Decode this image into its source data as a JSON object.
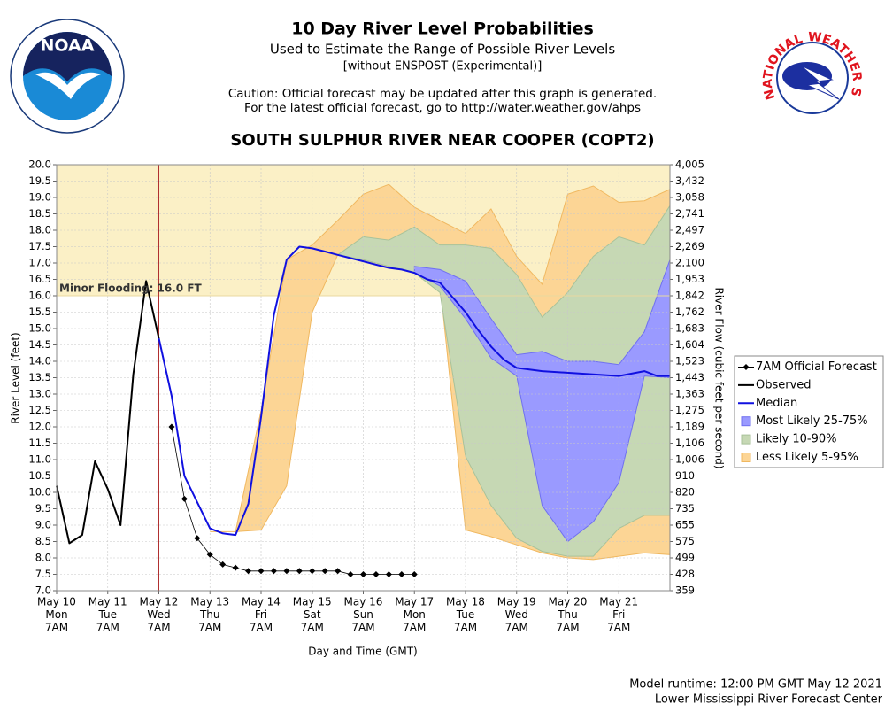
{
  "chart_data": {
    "type": "river-probability",
    "logos": {
      "noaa": "NOAA",
      "nws": "NATIONAL WEATHER SERVICE"
    },
    "title": "10 Day River Level Probabilities",
    "subtitles": [
      "Used to Estimate the Range of Possible River Levels",
      "[without ENSPOST (Experimental)]"
    ],
    "caution": [
      "Caution: Official forecast may be updated after this graph is generated.",
      "For the latest official forecast, go to http://water.weather.gov/ahps"
    ],
    "plot_title": "SOUTH SULPHUR RIVER NEAR COOPER (COPT2)",
    "xlabel": "Day and Time (GMT)",
    "ylabel": "River Level (feet)",
    "y2label": "River Flow (cubic feet per second)",
    "footer": [
      "Model runtime: 12:00 PM GMT May 12 2021",
      "Lower Mississippi River Forecast Center"
    ],
    "xlim": [
      "May 10 07:00",
      "May 22 07:00"
    ],
    "xticks": [
      {
        "value": "May 10 07:00",
        "label": [
          "May 10",
          "Mon",
          "7AM"
        ]
      },
      {
        "value": "May 11 07:00",
        "label": [
          "May 11",
          "Tue",
          "7AM"
        ]
      },
      {
        "value": "May 12 07:00",
        "label": [
          "May 12",
          "Wed",
          "7AM"
        ]
      },
      {
        "value": "May 13 07:00",
        "label": [
          "May 13",
          "Thu",
          "7AM"
        ]
      },
      {
        "value": "May 14 07:00",
        "label": [
          "May 14",
          "Fri",
          "7AM"
        ]
      },
      {
        "value": "May 15 07:00",
        "label": [
          "May 15",
          "Sat",
          "7AM"
        ]
      },
      {
        "value": "May 16 07:00",
        "label": [
          "May 16",
          "Sun",
          "7AM"
        ]
      },
      {
        "value": "May 17 07:00",
        "label": [
          "May 17",
          "Mon",
          "7AM"
        ]
      },
      {
        "value": "May 18 07:00",
        "label": [
          "May 18",
          "Tue",
          "7AM"
        ]
      },
      {
        "value": "May 19 07:00",
        "label": [
          "May 19",
          "Wed",
          "7AM"
        ]
      },
      {
        "value": "May 20 07:00",
        "label": [
          "May 20",
          "Thu",
          "7AM"
        ]
      },
      {
        "value": "May 21 07:00",
        "label": [
          "May 21",
          "Fri",
          "7AM"
        ]
      }
    ],
    "ylim": [
      7,
      20
    ],
    "yticks": [
      {
        "value": 20,
        "label": "20.0"
      },
      19.5,
      {
        "value": 19,
        "label": "19.0"
      },
      18.5,
      {
        "value": 18,
        "label": "18.0"
      },
      17.5,
      {
        "value": 17,
        "label": "17.0"
      },
      16.5,
      {
        "value": 16,
        "label": "16.0"
      },
      15.5,
      {
        "value": 15,
        "label": "15.0"
      },
      14.5,
      {
        "value": 14,
        "label": "14.0"
      },
      13.5,
      {
        "value": 13,
        "label": "13.0"
      },
      12.5,
      {
        "value": 12,
        "label": "12.0"
      },
      11.5,
      {
        "value": 11,
        "label": "11.0"
      },
      10.5,
      {
        "value": 10,
        "label": "10.0"
      },
      9.5,
      {
        "value": 9,
        "label": "9.0"
      },
      8.5,
      {
        "value": 8,
        "label": "8.0"
      },
      7.5,
      {
        "value": 7,
        "label": "7.0"
      }
    ],
    "y2ticks": [
      {
        "value": 4005,
        "label": "4,005"
      },
      {
        "value": 3432,
        "label": "3,432"
      },
      {
        "value": 3058,
        "label": "3,058"
      },
      {
        "value": 2741,
        "label": "2,741"
      },
      {
        "value": 2497,
        "label": "2,497"
      },
      {
        "value": 2269,
        "label": "2,269"
      },
      {
        "value": 2100,
        "label": "2,100"
      },
      {
        "value": 1953,
        "label": "1,953"
      },
      {
        "value": 1842,
        "label": "1,842"
      },
      {
        "value": 1762,
        "label": "1,762"
      },
      {
        "value": 1683,
        "label": "1,683"
      },
      {
        "value": 1604,
        "label": "1,604"
      },
      {
        "value": 1523,
        "label": "1,523"
      },
      {
        "value": 1443,
        "label": "1,443"
      },
      {
        "value": 1363,
        "label": "1,363"
      },
      {
        "value": 1275,
        "label": "1,275"
      },
      {
        "value": 1189,
        "label": "1,189"
      },
      {
        "value": 1106,
        "label": "1,106"
      },
      {
        "value": 1006,
        "label": "1,006"
      },
      910,
      820,
      735,
      655,
      575,
      499,
      428,
      359
    ],
    "grid": true,
    "flood_stage": 16,
    "flood_label": "Minor Flooding: 16.0 FT",
    "flood_color": "#fbf0c6",
    "now": "May 12 07:00",
    "now_color": "#b03030",
    "series": [
      {
        "name": "7AM Official Forecast",
        "kind": "diamond",
        "color": "#000000",
        "x": [
          "May 12 13:00",
          "May 12 19:00",
          "May 13 01:00",
          "May 13 07:00",
          "May 13 13:00",
          "May 13 19:00",
          "May 14 01:00",
          "May 14 07:00",
          "May 14 13:00",
          "May 14 19:00",
          "May 15 01:00",
          "May 15 07:00",
          "May 15 13:00",
          "May 15 19:00",
          "May 16 01:00",
          "May 16 07:00",
          "May 16 13:00",
          "May 16 19:00",
          "May 17 01:00",
          "May 17 07:00"
        ],
        "values": [
          12.0,
          9.8,
          8.6,
          8.1,
          7.8,
          7.7,
          7.6,
          7.6,
          7.6,
          7.6,
          7.6,
          7.6,
          7.6,
          7.6,
          7.5,
          7.5,
          7.5,
          7.5,
          7.5,
          7.5
        ]
      },
      {
        "name": "Observed",
        "kind": "line",
        "color": "#000000",
        "x": [
          "May 10 07:00",
          "May 10 13:00",
          "May 10 19:00",
          "May 11 01:00",
          "May 11 07:00",
          "May 11 13:00",
          "May 11 19:00",
          "May 12 01:00",
          "May 12 07:00"
        ],
        "values": [
          10.2,
          8.45,
          8.7,
          10.95,
          10.1,
          9.0,
          13.6,
          16.45,
          14.7
        ]
      },
      {
        "name": "Median",
        "kind": "line",
        "color": "#1010e0",
        "x": [
          "May 12 07:00",
          "May 12 13:00",
          "May 12 19:00",
          "May 13 01:00",
          "May 13 07:00",
          "May 13 13:00",
          "May 13 19:00",
          "May 14 01:00",
          "May 14 07:00",
          "May 14 13:00",
          "May 14 19:00",
          "May 15 01:00",
          "May 15 07:00",
          "May 15 13:00",
          "May 15 19:00",
          "May 16 01:00",
          "May 16 07:00",
          "May 16 13:00",
          "May 16 19:00",
          "May 17 01:00",
          "May 17 07:00",
          "May 17 13:00",
          "May 17 19:00",
          "May 18 01:00",
          "May 18 07:00",
          "May 18 13:00",
          "May 18 19:00",
          "May 19 01:00",
          "May 19 07:00",
          "May 19 19:00",
          "May 21 07:00",
          "May 21 19:00",
          "May 22 01:00",
          "May 22 07:00"
        ],
        "values": [
          14.7,
          12.95,
          10.5,
          9.7,
          8.9,
          8.75,
          8.7,
          9.65,
          12.3,
          15.4,
          17.1,
          17.5,
          17.45,
          17.35,
          17.25,
          17.15,
          17.05,
          16.95,
          16.85,
          16.8,
          16.7,
          16.5,
          16.4,
          15.95,
          15.5,
          14.95,
          14.45,
          14.05,
          13.8,
          13.7,
          13.55,
          13.7,
          13.55,
          13.55
        ]
      },
      {
        "name": "Most Likely 25-75%",
        "kind": "band",
        "color": "#9a9aff",
        "edge": "#7070f0",
        "x": [
          "May 17 07:00",
          "May 17 19:00",
          "May 18 07:00",
          "May 18 19:00",
          "May 19 07:00",
          "May 19 19:00",
          "May 20 07:00",
          "May 20 19:00",
          "May 21 07:00",
          "May 21 19:00",
          "May 22 07:00"
        ],
        "high": [
          16.9,
          16.8,
          16.45,
          15.3,
          14.2,
          14.3,
          14.0,
          14.0,
          13.9,
          14.9,
          17.1
        ],
        "low": [
          16.7,
          16.3,
          15.3,
          14.1,
          13.55,
          9.6,
          8.5,
          9.1,
          10.3,
          13.55,
          13.5
        ]
      },
      {
        "name": "Likely 10-90%",
        "kind": "band",
        "color": "#c6d8b4",
        "edge": "#a8c29a",
        "x": [
          "May 15 19:00",
          "May 16 07:00",
          "May 16 19:00",
          "May 17 07:00",
          "May 17 19:00",
          "May 18 07:00",
          "May 18 19:00",
          "May 19 07:00",
          "May 19 19:00",
          "May 20 07:00",
          "May 20 19:00",
          "May 21 07:00",
          "May 21 19:00",
          "May 22 07:00"
        ],
        "high": [
          17.25,
          17.8,
          17.7,
          18.1,
          17.55,
          17.55,
          17.45,
          16.65,
          15.35,
          16.1,
          17.2,
          17.8,
          17.55,
          18.75
        ],
        "low": [
          17.25,
          17.1,
          16.9,
          16.7,
          16.1,
          11.1,
          9.6,
          8.6,
          8.2,
          8.05,
          8.05,
          8.9,
          9.3,
          9.3
        ]
      },
      {
        "name": "Less Likely 5-95%",
        "kind": "band",
        "color": "#fcd595",
        "edge": "#f0b860",
        "x": [
          "May 13 07:00",
          "May 13 19:00",
          "May 14 07:00",
          "May 14 19:00",
          "May 15 07:00",
          "May 15 19:00",
          "May 16 07:00",
          "May 16 19:00",
          "May 17 07:00",
          "May 17 19:00",
          "May 18 07:00",
          "May 18 19:00",
          "May 19 07:00",
          "May 19 19:00",
          "May 20 07:00",
          "May 20 19:00",
          "May 21 07:00",
          "May 21 19:00",
          "May 22 07:00"
        ],
        "high": [
          8.8,
          8.8,
          12.5,
          17.1,
          17.55,
          18.3,
          19.1,
          19.4,
          18.7,
          18.3,
          17.9,
          18.65,
          17.2,
          16.35,
          19.1,
          19.35,
          18.85,
          18.9,
          19.25
        ],
        "low": [
          8.8,
          8.8,
          8.85,
          10.2,
          15.5,
          17.25,
          17.1,
          16.9,
          16.7,
          16.4,
          8.85,
          8.65,
          8.4,
          8.15,
          8.0,
          7.95,
          8.05,
          8.15,
          8.1
        ]
      }
    ]
  }
}
